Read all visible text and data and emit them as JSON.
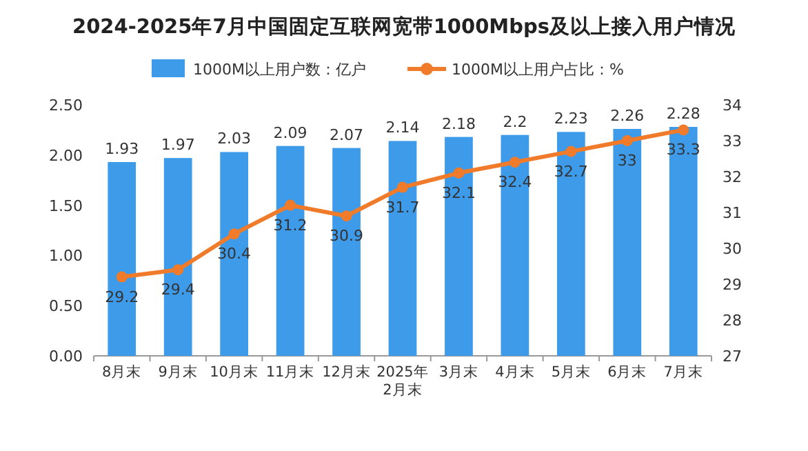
{
  "chart_data": {
    "type": "bar",
    "title": "2024-2025年7月中国固定互联网宽带1000Mbps及以上接入用户情况",
    "categories": [
      "8月末",
      "9月末",
      "10月末",
      "11月末",
      "12月末",
      "2025年\n2月末",
      "3月末",
      "4月末",
      "5月末",
      "6月末",
      "7月末"
    ],
    "series": [
      {
        "name": "1000M以上用户数：亿户",
        "color": "#3d9be9",
        "values": [
          1.93,
          1.97,
          2.03,
          2.09,
          2.07,
          2.14,
          2.18,
          2.2,
          2.23,
          2.26,
          2.28
        ]
      },
      {
        "name": "1000M以上用户占比：%",
        "type": "line",
        "axis": "y2",
        "color": "#f07b2a",
        "values": [
          29.2,
          29.4,
          30.4,
          31.2,
          30.9,
          31.7,
          32.1,
          32.4,
          32.7,
          33,
          33.3
        ]
      }
    ],
    "ylim": [
      0,
      2.5
    ],
    "yticks": [
      {
        "value": 0,
        "label": "0.00"
      },
      {
        "value": 0.5,
        "label": "0.50"
      },
      {
        "value": 1,
        "label": "1.00"
      },
      {
        "value": 1.5,
        "label": "1.50"
      },
      {
        "value": 2,
        "label": "2.00"
      },
      {
        "value": 2.5,
        "label": "2.50"
      }
    ],
    "y2lim": [
      27,
      34
    ],
    "y2ticks": [
      27,
      28,
      29,
      30,
      31,
      32,
      33,
      34
    ],
    "data_labels": true,
    "legend": "top",
    "marker": "circle"
  }
}
